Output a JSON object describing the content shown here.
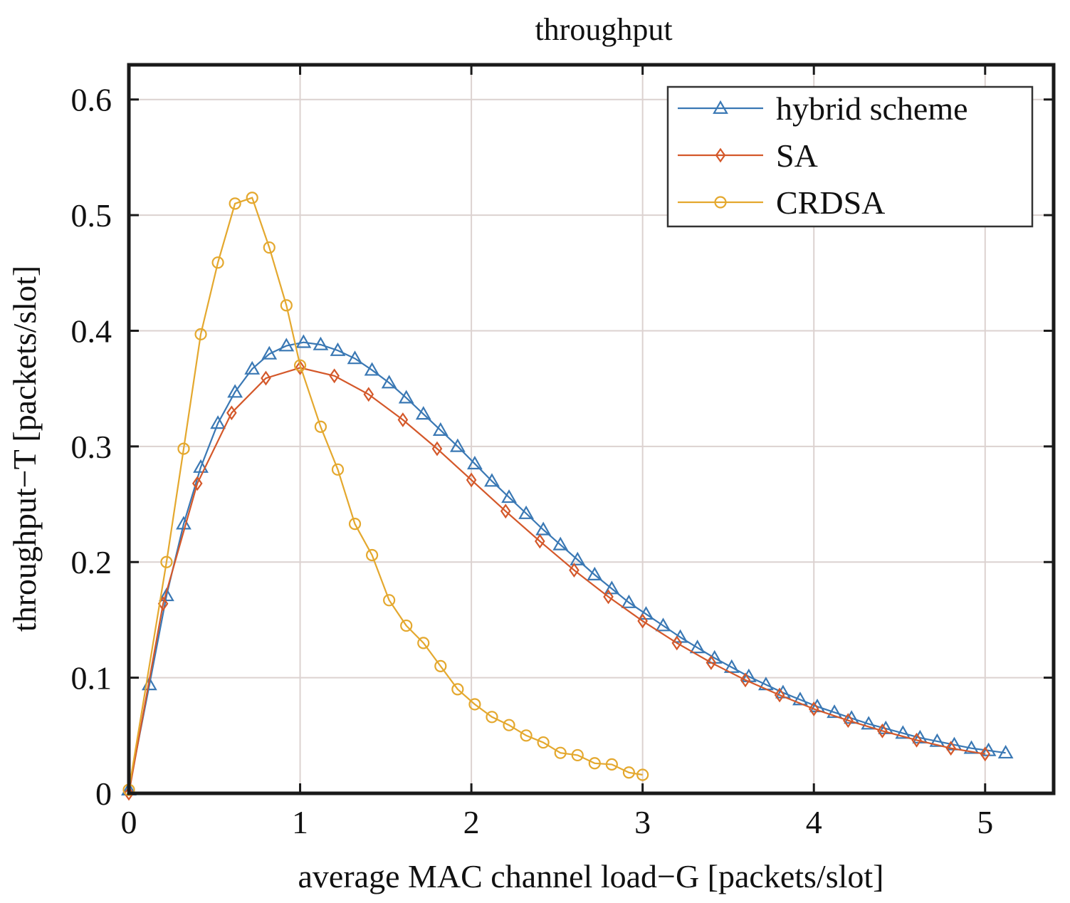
{
  "chart_data": {
    "type": "line",
    "title": "throughput",
    "xlabel": "average MAC channel load−G [packets/slot]",
    "ylabel": "throughput−T [packets/slot]",
    "xlim": [
      0,
      5.4
    ],
    "ylim": [
      0,
      0.63
    ],
    "xticks": [
      0,
      1,
      2,
      3,
      4,
      5
    ],
    "xtick_labels": [
      "0",
      "1",
      "2",
      "3",
      "4",
      "5"
    ],
    "yticks": [
      0,
      0.1,
      0.2,
      0.3,
      0.4,
      0.5,
      0.6
    ],
    "ytick_labels": [
      "0",
      "0.1",
      "0.2",
      "0.3",
      "0.4",
      "0.5",
      "0.6"
    ],
    "grid": true,
    "legend_position": "top-right",
    "series": [
      {
        "name": "hybrid scheme",
        "color": "#3a78b4",
        "marker": "triangle",
        "x": [
          0,
          0.12,
          0.22,
          0.32,
          0.42,
          0.52,
          0.62,
          0.72,
          0.82,
          0.92,
          1.02,
          1.12,
          1.22,
          1.32,
          1.42,
          1.52,
          1.62,
          1.72,
          1.82,
          1.92,
          2.02,
          2.12,
          2.22,
          2.32,
          2.42,
          2.52,
          2.62,
          2.72,
          2.82,
          2.92,
          3.02,
          3.12,
          3.22,
          3.32,
          3.42,
          3.52,
          3.62,
          3.72,
          3.82,
          3.92,
          4.02,
          4.12,
          4.22,
          4.32,
          4.42,
          4.52,
          4.62,
          4.72,
          4.82,
          4.92,
          5.02,
          5.12
        ],
        "y": [
          0.003,
          0.094,
          0.171,
          0.233,
          0.282,
          0.32,
          0.347,
          0.367,
          0.38,
          0.387,
          0.39,
          0.388,
          0.383,
          0.376,
          0.366,
          0.355,
          0.342,
          0.328,
          0.314,
          0.3,
          0.285,
          0.27,
          0.256,
          0.242,
          0.228,
          0.215,
          0.202,
          0.189,
          0.177,
          0.165,
          0.155,
          0.145,
          0.135,
          0.126,
          0.117,
          0.109,
          0.101,
          0.094,
          0.087,
          0.081,
          0.075,
          0.07,
          0.065,
          0.06,
          0.056,
          0.052,
          0.048,
          0.045,
          0.042,
          0.039,
          0.037,
          0.035
        ]
      },
      {
        "name": "SA",
        "color": "#d4582a",
        "marker": "diamond",
        "x": [
          0,
          0.2,
          0.4,
          0.6,
          0.8,
          1.0,
          1.2,
          1.4,
          1.6,
          1.8,
          2.0,
          2.2,
          2.4,
          2.6,
          2.8,
          3.0,
          3.2,
          3.4,
          3.6,
          3.8,
          4.0,
          4.2,
          4.4,
          4.6,
          4.8,
          5.0
        ],
        "y": [
          0.0,
          0.164,
          0.268,
          0.329,
          0.359,
          0.368,
          0.361,
          0.345,
          0.323,
          0.298,
          0.271,
          0.244,
          0.218,
          0.193,
          0.17,
          0.149,
          0.13,
          0.113,
          0.098,
          0.085,
          0.073,
          0.063,
          0.054,
          0.046,
          0.039,
          0.034
        ]
      },
      {
        "name": "CRDSA",
        "color": "#e4a82e",
        "marker": "circle",
        "x": [
          0,
          0.22,
          0.32,
          0.42,
          0.52,
          0.62,
          0.72,
          0.82,
          0.92,
          1.0,
          1.12,
          1.22,
          1.32,
          1.42,
          1.52,
          1.62,
          1.72,
          1.82,
          1.92,
          2.02,
          2.12,
          2.22,
          2.32,
          2.42,
          2.52,
          2.62,
          2.72,
          2.82,
          2.92,
          3.0
        ],
        "y": [
          0.003,
          0.2,
          0.298,
          0.397,
          0.459,
          0.51,
          0.515,
          0.472,
          0.422,
          0.37,
          0.317,
          0.28,
          0.233,
          0.206,
          0.167,
          0.145,
          0.13,
          0.11,
          0.09,
          0.077,
          0.066,
          0.059,
          0.05,
          0.044,
          0.035,
          0.033,
          0.026,
          0.025,
          0.018,
          0.016
        ]
      }
    ]
  }
}
